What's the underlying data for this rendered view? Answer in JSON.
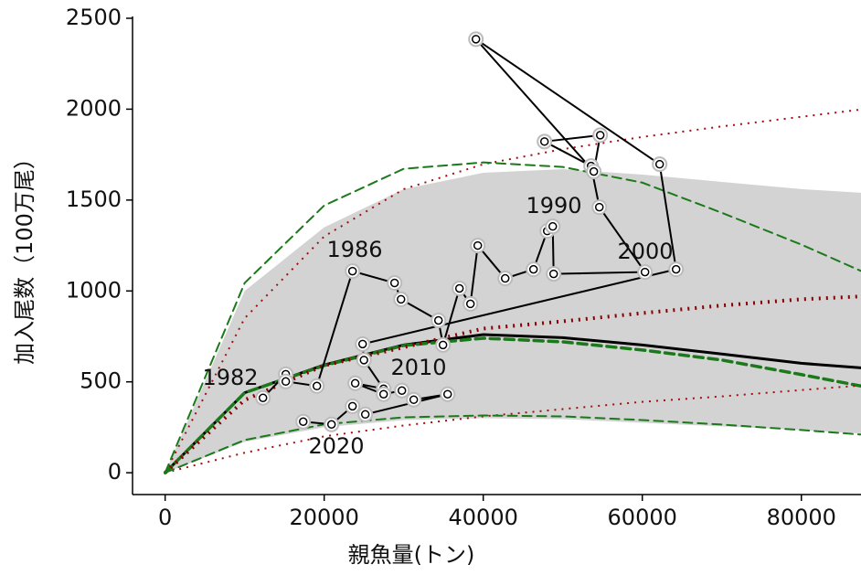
{
  "chart_data": {
    "type": "scatter",
    "xlabel": "親魚量(トン)",
    "ylabel": "加入尾数（100万尾）",
    "xlim": [
      -4100,
      87500
    ],
    "ylim": [
      -120,
      2510
    ],
    "xticks": [
      0,
      20000,
      40000,
      60000,
      80000
    ],
    "yticks": [
      0,
      500,
      1000,
      1500,
      2000,
      2500
    ],
    "band": {
      "color": "#d3d3d3",
      "x": [
        0,
        10000,
        20000,
        30000,
        40000,
        50000,
        60000,
        70000,
        80000,
        87500
      ],
      "upper": [
        0,
        1000,
        1350,
        1560,
        1650,
        1670,
        1640,
        1600,
        1560,
        1540
      ],
      "lower": [
        0,
        170,
        250,
        290,
        300,
        295,
        275,
        255,
        235,
        215
      ]
    },
    "curves": [
      {
        "color": "#000000",
        "style": "solid",
        "width": 3,
        "x": [
          0,
          10000,
          20000,
          30000,
          40000,
          50000,
          60000,
          70000,
          80000,
          87500
        ],
        "values": [
          0,
          440,
          593,
          703,
          760,
          743,
          703,
          653,
          602,
          577
        ]
      },
      {
        "color": "#1a7a1a",
        "style": "dash",
        "width": 3.5,
        "x": [
          0,
          10000,
          20000,
          30000,
          40000,
          50000,
          60000,
          70000,
          80000,
          87500
        ],
        "values": [
          0,
          440,
          590,
          700,
          740,
          720,
          675,
          620,
          540,
          477
        ]
      },
      {
        "color": "#8b0000",
        "style": "dot",
        "width": 4,
        "x": [
          0,
          10000,
          20000,
          30000,
          40000,
          50000,
          60000,
          70000,
          80000,
          87500
        ],
        "values": [
          0,
          400,
          590,
          690,
          793,
          833,
          878,
          920,
          954,
          970
        ]
      },
      {
        "color": "#a01010",
        "style": "dot",
        "width": 2,
        "x": [
          0,
          10000,
          20000,
          30000,
          40000,
          50000,
          60000,
          70000,
          80000,
          87500
        ],
        "values": [
          0,
          850,
          1300,
          1560,
          1697,
          1780,
          1847,
          1905,
          1958,
          1998
        ]
      },
      {
        "color": "#a01010",
        "style": "dot",
        "width": 2,
        "x": [
          0,
          10000,
          20000,
          30000,
          40000,
          50000,
          60000,
          70000,
          80000,
          87500
        ],
        "values": [
          0,
          110,
          200,
          260,
          310,
          350,
          390,
          420,
          455,
          480
        ]
      },
      {
        "color": "#1a7a1a",
        "style": "dash",
        "width": 2,
        "x": [
          0,
          10000,
          20000,
          30000,
          40000,
          50000,
          60000,
          70000,
          80000,
          87500
        ],
        "values": [
          0,
          1044,
          1470,
          1672,
          1707,
          1682,
          1596,
          1430,
          1255,
          1110
        ]
      },
      {
        "color": "#1a7a1a",
        "style": "dash",
        "width": 2,
        "x": [
          0,
          10000,
          20000,
          30000,
          40000,
          50000,
          60000,
          70000,
          80000,
          87500
        ],
        "values": [
          0,
          180,
          266,
          305,
          315,
          310,
          290,
          265,
          235,
          210
        ]
      }
    ],
    "points": {
      "color": "#000000",
      "x": [
        12300,
        15170,
        15170,
        19080,
        23560,
        28850,
        29660,
        34370,
        34940,
        37010,
        38390,
        39310,
        42760,
        46320,
        48050,
        48740,
        48850,
        60340,
        54600,
        53560,
        47700,
        54710,
        53900,
        39080,
        62180,
        64250,
        24830,
        25000,
        27470,
        23900,
        27470,
        29770,
        31260,
        35520,
        25170,
        23560,
        20920,
        17360
      ],
      "values": [
        412,
        542,
        502,
        477,
        1109,
        1044,
        954,
        838,
        703,
        1014,
        929,
        1250,
        1069,
        1119,
        1330,
        1355,
        1094,
        1104,
        1461,
        1687,
        1822,
        1857,
        1657,
        2385,
        1697,
        1119,
        708,
        620,
        462,
        492,
        432,
        452,
        402,
        432,
        321,
        366,
        266,
        281
      ]
    },
    "annotations": [
      "1982",
      "1986",
      "1990",
      "2000",
      "2010",
      "2020"
    ]
  }
}
